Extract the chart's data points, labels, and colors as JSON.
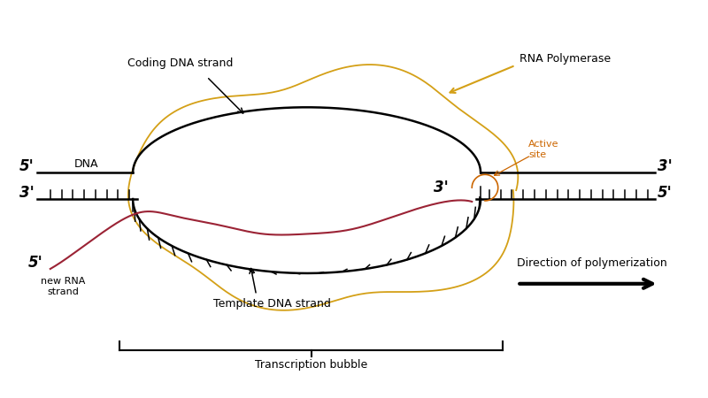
{
  "bg_color": "#ffffff",
  "fig_width": 8.0,
  "fig_height": 4.5,
  "dpi": 100,
  "labels": {
    "coding_dna": "Coding DNA strand",
    "rna_pol": "RNA Polymerase",
    "active_site": "Active\nsite",
    "dna_label": "DNA",
    "five_prime_top": "5'",
    "three_prime_top": "3'",
    "five_prime_bot": "5'",
    "three_prime_left": "3'",
    "five_prime_rna": "5'",
    "new_rna": "new RNA\nstrand",
    "template_dna": "Template DNA strand",
    "transcription_bubble": "Transcription bubble",
    "direction": "Direction of polymerization",
    "three_prime_bubble": "3'"
  },
  "colors": {
    "black": "#000000",
    "gold": "#D4A017",
    "orange": "#CC6600",
    "crimson": "#9B2335",
    "white": "#ffffff"
  },
  "xlim": [
    0,
    8
  ],
  "ylim": [
    0,
    4.5
  ]
}
